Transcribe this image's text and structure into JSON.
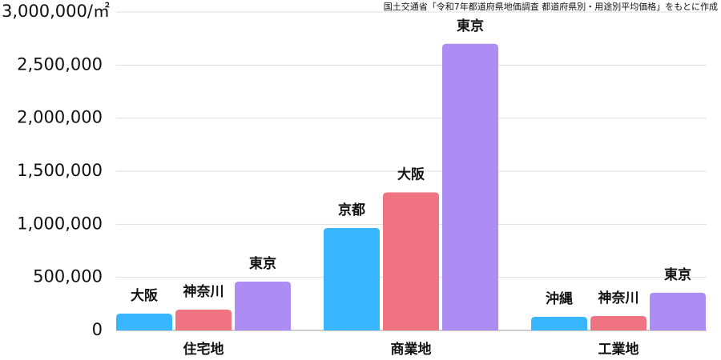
{
  "chart_data": {
    "type": "bar",
    "source": "国土交通省「令和7年都道府県地価調査 都道府県別・用途別平均価格」をもとに作成",
    "categories": [
      "住宅地",
      "商業地",
      "工業地"
    ],
    "series": [
      {
        "color": "#38b6ff",
        "bar_labels": [
          "大阪",
          "京都",
          "沖縄"
        ],
        "values": [
          158000,
          965000,
          128000
        ]
      },
      {
        "color": "#ef7380",
        "bar_labels": [
          "神奈川",
          "大阪",
          "神奈川"
        ],
        "values": [
          196000,
          1300000,
          136000
        ]
      },
      {
        "color": "#ad8cf4",
        "bar_labels": [
          "東京",
          "東京",
          "東京"
        ],
        "values": [
          460000,
          2700000,
          355000
        ]
      }
    ],
    "ylim": [
      0,
      3000000
    ],
    "yticks": [
      0,
      {
        "value": 500000,
        "label": "500,000"
      },
      {
        "value": 1000000,
        "label": "1,000,000"
      },
      {
        "value": 1500000,
        "label": "1,500,000"
      },
      {
        "value": 2000000,
        "label": "2,000,000"
      },
      {
        "value": 2500000,
        "label": "2,500,000"
      },
      {
        "value": 3000000,
        "label": "3,000,000/㎡"
      }
    ],
    "grid": true
  }
}
